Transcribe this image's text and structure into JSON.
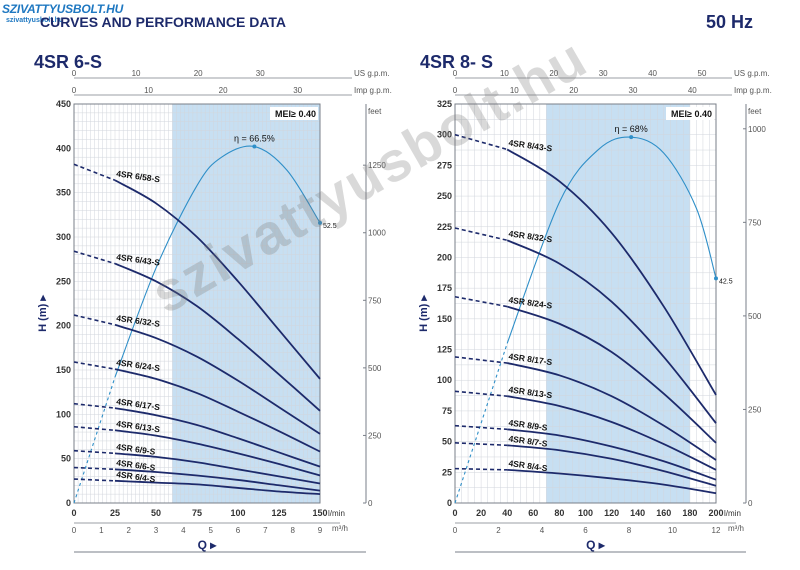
{
  "header": {
    "logo_text": "SZIVATTYUSBOLT.HU",
    "logo_sub": "szivattyusbolt.hu",
    "title": "CURVES AND PERFORMANCE DATA",
    "frequency": "50 Hz",
    "watermark": "szivattyusbolt.hu"
  },
  "chart_data": [
    {
      "type": "line",
      "model": "4SR 6-S",
      "ylabel": "H (m)",
      "xlabel": "Q",
      "units": {
        "x_lmin": "l/min",
        "x_m3h": "m³/h",
        "x_usgpm": "US g.p.m.",
        "x_impgpm": "Imp g.p.m.",
        "y_feet": "feet"
      },
      "xlim": [
        0,
        150
      ],
      "ylim": [
        0,
        450
      ],
      "x_ticks": [
        0,
        25,
        50,
        75,
        100,
        125,
        150
      ],
      "y_ticks": [
        0,
        50,
        100,
        150,
        200,
        250,
        300,
        350,
        400,
        450
      ],
      "m3h_ticks": [
        "0",
        "1",
        "2",
        "3",
        "4",
        "5",
        "6",
        "7",
        "8",
        "9"
      ],
      "usgpm_ticks": [
        "0",
        "10",
        "20",
        "30",
        "40"
      ],
      "impgpm_ticks": [
        "0",
        "10",
        "20",
        "30"
      ],
      "feet_ticks": [
        "1250",
        "1000",
        "750",
        "500",
        "250",
        "0"
      ],
      "mei": "MEI≥ 0.40",
      "recommended_range": [
        60,
        150
      ],
      "series": [
        {
          "name": "4SR 6/58-S",
          "x": [
            0,
            25,
            50,
            75,
            100,
            125,
            150
          ],
          "y": [
            382,
            364,
            338,
            300,
            250,
            195,
            140
          ],
          "dashed_to": 25
        },
        {
          "name": "4SR 6/43-S",
          "x": [
            0,
            25,
            50,
            75,
            100,
            125,
            150
          ],
          "y": [
            284,
            270,
            250,
            222,
            185,
            145,
            104
          ],
          "dashed_to": 25
        },
        {
          "name": "4SR 6/32-S",
          "x": [
            0,
            25,
            50,
            75,
            100,
            125,
            150
          ],
          "y": [
            212,
            201,
            186,
            165,
            138,
            108,
            78
          ],
          "dashed_to": 25
        },
        {
          "name": "4SR 6/24-S",
          "x": [
            0,
            25,
            50,
            75,
            100,
            125,
            150
          ],
          "y": [
            159,
            151,
            140,
            124,
            103,
            81,
            58
          ],
          "dashed_to": 25
        },
        {
          "name": "4SR 6/17-S",
          "x": [
            0,
            25,
            50,
            75,
            100,
            125,
            150
          ],
          "y": [
            112,
            107,
            99,
            88,
            73,
            57,
            41
          ],
          "dashed_to": 25
        },
        {
          "name": "4SR 6/13-S",
          "x": [
            0,
            25,
            50,
            75,
            100,
            125,
            150
          ],
          "y": [
            86,
            82,
            76,
            67,
            56,
            44,
            31
          ],
          "dashed_to": 25
        },
        {
          "name": "4SR 6/9-S",
          "x": [
            0,
            25,
            50,
            75,
            100,
            125,
            150
          ],
          "y": [
            59,
            56,
            52,
            46,
            38,
            30,
            22
          ],
          "dashed_to": 25
        },
        {
          "name": "4SR 6/6-S",
          "x": [
            0,
            25,
            50,
            75,
            100,
            125,
            150
          ],
          "y": [
            40,
            38,
            35,
            31,
            26,
            20,
            14
          ],
          "dashed_to": 25
        },
        {
          "name": "4SR 6/4-S",
          "x": [
            0,
            25,
            50,
            75,
            100,
            125,
            150
          ],
          "y": [
            27,
            25,
            23,
            21,
            17,
            13,
            10
          ],
          "dashed_to": 25
        }
      ],
      "efficiency": {
        "peak_label": "η = 66.5%",
        "end_label": "52.5",
        "x": [
          0,
          25,
          50,
          75,
          90,
          110,
          130,
          150
        ],
        "y": [
          0,
          142,
          265,
          358,
          390,
          402,
          375,
          316
        ]
      }
    },
    {
      "type": "line",
      "model": "4SR 8- S",
      "ylabel": "H (m)",
      "xlabel": "Q",
      "units": {
        "x_lmin": "l/min",
        "x_m3h": "m³/h",
        "x_usgpm": "US g.p.m.",
        "x_impgpm": "Imp g.p.m.",
        "y_feet": "feet"
      },
      "xlim": [
        0,
        200
      ],
      "ylim": [
        0,
        325
      ],
      "x_ticks": [
        0,
        20,
        40,
        60,
        80,
        100,
        120,
        140,
        160,
        180,
        200
      ],
      "y_ticks": [
        0,
        25,
        50,
        75,
        100,
        125,
        150,
        175,
        200,
        225,
        250,
        275,
        300,
        325
      ],
      "m3h_ticks": [
        "0",
        "2",
        "4",
        "6",
        "8",
        "10",
        "12"
      ],
      "usgpm_ticks": [
        "0",
        "10",
        "20",
        "30",
        "40",
        "50"
      ],
      "impgpm_ticks": [
        "0",
        "10",
        "20",
        "30",
        "40"
      ],
      "feet_ticks": [
        "1000",
        "750",
        "500",
        "250",
        "0"
      ],
      "mei": "MEI≥ 0.40",
      "recommended_range": [
        70,
        180
      ],
      "series": [
        {
          "name": "4SR 8/43-S",
          "x": [
            0,
            40,
            80,
            120,
            160,
            200
          ],
          "y": [
            300,
            288,
            262,
            220,
            160,
            88
          ],
          "dashed_to": 40
        },
        {
          "name": "4SR 8/32-S",
          "x": [
            0,
            40,
            80,
            120,
            160,
            200
          ],
          "y": [
            224,
            214,
            195,
            164,
            119,
            65
          ],
          "dashed_to": 40
        },
        {
          "name": "4SR 8/24-S",
          "x": [
            0,
            40,
            80,
            120,
            160,
            200
          ],
          "y": [
            168,
            160,
            146,
            123,
            89,
            49
          ],
          "dashed_to": 40
        },
        {
          "name": "4SR 8/17-S",
          "x": [
            0,
            40,
            80,
            120,
            160,
            200
          ],
          "y": [
            119,
            114,
            104,
            87,
            63,
            35
          ],
          "dashed_to": 40
        },
        {
          "name": "4SR 8/13-S",
          "x": [
            0,
            40,
            80,
            120,
            160,
            200
          ],
          "y": [
            91,
            87,
            79,
            66,
            48,
            27
          ],
          "dashed_to": 40
        },
        {
          "name": "4SR 8/9-S",
          "x": [
            0,
            40,
            80,
            120,
            160,
            200
          ],
          "y": [
            63,
            60,
            55,
            46,
            34,
            19
          ],
          "dashed_to": 40
        },
        {
          "name": "4SR 8/7-S",
          "x": [
            0,
            40,
            80,
            120,
            160,
            200
          ],
          "y": [
            49,
            47,
            43,
            36,
            26,
            14
          ],
          "dashed_to": 40
        },
        {
          "name": "4SR 8/4-S",
          "x": [
            0,
            40,
            80,
            120,
            160,
            200
          ],
          "y": [
            28,
            27,
            24,
            20,
            15,
            8
          ],
          "dashed_to": 40
        }
      ],
      "efficiency": {
        "peak_label": "η = 68%",
        "end_label": "42.5",
        "x": [
          0,
          40,
          80,
          110,
          135,
          160,
          185,
          200
        ],
        "y": [
          0,
          130,
          245,
          288,
          298,
          285,
          240,
          183
        ]
      }
    }
  ]
}
